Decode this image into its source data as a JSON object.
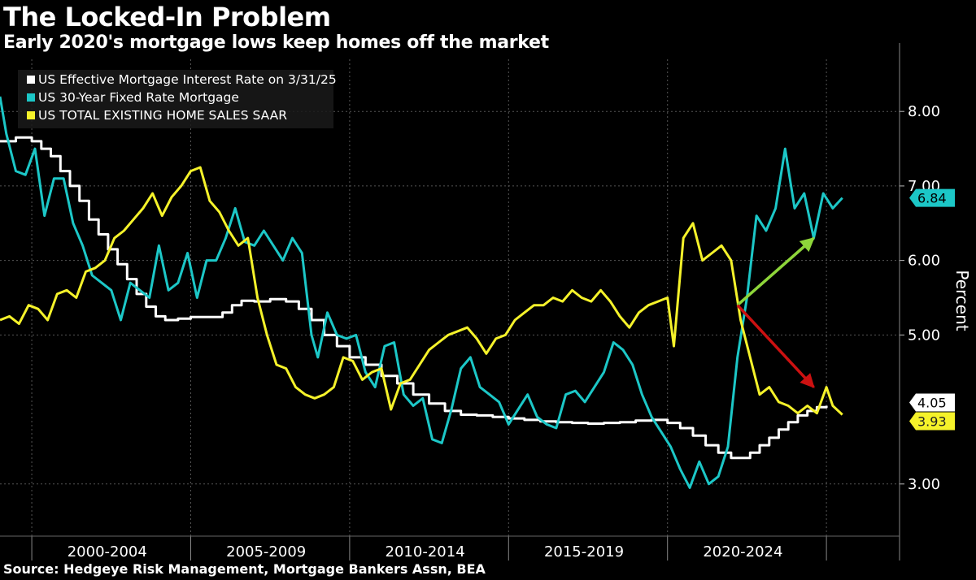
{
  "title": "The Locked-In Problem",
  "subtitle": "Early 2020's mortgage lows keep homes off the market",
  "source": "Source: Hedgeye Risk Management, Mortgage Bankers Assn, BEA",
  "chart_data": {
    "type": "line",
    "ylabel": "Percent",
    "ylim": [
      2.3,
      8.7
    ],
    "y_ticks": [
      3.0,
      5.0,
      6.0,
      7.0,
      8.0
    ],
    "y_tick_labels": [
      "3.00",
      "5.00",
      "6.00",
      "7.00",
      "8.00"
    ],
    "extra_tick_label": "4.05",
    "x_range": [
      1999.0,
      2027.3
    ],
    "categories": [
      "2000-2004",
      "2005-2009",
      "2010-2014",
      "2015-2019",
      "2020-2024"
    ],
    "grid": true,
    "legend_position": "top-left",
    "series": [
      {
        "name": "US Effective Mortgage Interest Rate on 3/31/25",
        "color": "#ffffff",
        "step": true,
        "last_label": "4.05",
        "points": [
          [
            1999.0,
            7.6
          ],
          [
            1999.5,
            7.65
          ],
          [
            2000.0,
            7.6
          ],
          [
            2000.3,
            7.5
          ],
          [
            2000.6,
            7.4
          ],
          [
            2000.9,
            7.2
          ],
          [
            2001.2,
            7.0
          ],
          [
            2001.5,
            6.8
          ],
          [
            2001.8,
            6.55
          ],
          [
            2002.1,
            6.35
          ],
          [
            2002.4,
            6.15
          ],
          [
            2002.7,
            5.95
          ],
          [
            2003.0,
            5.75
          ],
          [
            2003.3,
            5.55
          ],
          [
            2003.6,
            5.38
          ],
          [
            2003.9,
            5.25
          ],
          [
            2004.2,
            5.2
          ],
          [
            2004.6,
            5.22
          ],
          [
            2005.0,
            5.24
          ],
          [
            2005.5,
            5.24
          ],
          [
            2006.0,
            5.3
          ],
          [
            2006.3,
            5.4
          ],
          [
            2006.6,
            5.46
          ],
          [
            2007.0,
            5.45
          ],
          [
            2007.5,
            5.48
          ],
          [
            2008.0,
            5.45
          ],
          [
            2008.4,
            5.35
          ],
          [
            2008.8,
            5.2
          ],
          [
            2009.2,
            5.0
          ],
          [
            2009.6,
            4.85
          ],
          [
            2010.0,
            4.7
          ],
          [
            2010.5,
            4.6
          ],
          [
            2011.0,
            4.45
          ],
          [
            2011.5,
            4.35
          ],
          [
            2012.0,
            4.2
          ],
          [
            2012.5,
            4.08
          ],
          [
            2013.0,
            3.98
          ],
          [
            2013.5,
            3.93
          ],
          [
            2014.0,
            3.92
          ],
          [
            2014.5,
            3.9
          ],
          [
            2015.0,
            3.88
          ],
          [
            2015.5,
            3.86
          ],
          [
            2016.0,
            3.84
          ],
          [
            2016.5,
            3.83
          ],
          [
            2017.0,
            3.82
          ],
          [
            2017.5,
            3.81
          ],
          [
            2018.0,
            3.82
          ],
          [
            2018.5,
            3.83
          ],
          [
            2019.0,
            3.85
          ],
          [
            2019.5,
            3.86
          ],
          [
            2020.0,
            3.82
          ],
          [
            2020.4,
            3.75
          ],
          [
            2020.8,
            3.65
          ],
          [
            2021.2,
            3.52
          ],
          [
            2021.6,
            3.42
          ],
          [
            2022.0,
            3.35
          ],
          [
            2022.3,
            3.35
          ],
          [
            2022.6,
            3.42
          ],
          [
            2022.9,
            3.52
          ],
          [
            2023.2,
            3.62
          ],
          [
            2023.5,
            3.73
          ],
          [
            2023.8,
            3.83
          ],
          [
            2024.1,
            3.92
          ],
          [
            2024.4,
            3.98
          ],
          [
            2024.7,
            4.03
          ],
          [
            2025.0,
            4.05
          ]
        ]
      },
      {
        "name": "US 30-Year Fixed Rate Mortgage",
        "color": "#1cc7c7",
        "step": false,
        "last_label": "6.84",
        "points": [
          [
            1999.0,
            8.2
          ],
          [
            1999.2,
            7.7
          ],
          [
            1999.5,
            7.2
          ],
          [
            1999.8,
            7.15
          ],
          [
            2000.1,
            7.5
          ],
          [
            2000.4,
            6.6
          ],
          [
            2000.7,
            7.1
          ],
          [
            2001.0,
            7.1
          ],
          [
            2001.3,
            6.5
          ],
          [
            2001.6,
            6.2
          ],
          [
            2001.9,
            5.8
          ],
          [
            2002.2,
            5.7
          ],
          [
            2002.5,
            5.6
          ],
          [
            2002.8,
            5.2
          ],
          [
            2003.1,
            5.7
          ],
          [
            2003.4,
            5.6
          ],
          [
            2003.7,
            5.5
          ],
          [
            2004.0,
            6.2
          ],
          [
            2004.3,
            5.6
          ],
          [
            2004.6,
            5.7
          ],
          [
            2004.9,
            6.1
          ],
          [
            2005.2,
            5.5
          ],
          [
            2005.5,
            6.0
          ],
          [
            2005.8,
            6.0
          ],
          [
            2006.1,
            6.3
          ],
          [
            2006.4,
            6.7
          ],
          [
            2006.7,
            6.25
          ],
          [
            2007.0,
            6.2
          ],
          [
            2007.3,
            6.4
          ],
          [
            2007.6,
            6.2
          ],
          [
            2007.9,
            6.0
          ],
          [
            2008.2,
            6.3
          ],
          [
            2008.5,
            6.1
          ],
          [
            2008.8,
            5.0
          ],
          [
            2009.0,
            4.7
          ],
          [
            2009.3,
            5.3
          ],
          [
            2009.6,
            5.0
          ],
          [
            2009.9,
            4.95
          ],
          [
            2010.2,
            5.0
          ],
          [
            2010.5,
            4.5
          ],
          [
            2010.8,
            4.3
          ],
          [
            2011.1,
            4.85
          ],
          [
            2011.4,
            4.9
          ],
          [
            2011.7,
            4.2
          ],
          [
            2012.0,
            4.05
          ],
          [
            2012.3,
            4.15
          ],
          [
            2012.6,
            3.6
          ],
          [
            2012.9,
            3.55
          ],
          [
            2013.2,
            4.0
          ],
          [
            2013.5,
            4.55
          ],
          [
            2013.8,
            4.7
          ],
          [
            2014.1,
            4.3
          ],
          [
            2014.4,
            4.2
          ],
          [
            2014.7,
            4.1
          ],
          [
            2015.0,
            3.8
          ],
          [
            2015.3,
            4.0
          ],
          [
            2015.6,
            4.2
          ],
          [
            2015.9,
            3.9
          ],
          [
            2016.2,
            3.8
          ],
          [
            2016.5,
            3.75
          ],
          [
            2016.8,
            4.2
          ],
          [
            2017.1,
            4.25
          ],
          [
            2017.4,
            4.1
          ],
          [
            2017.7,
            4.3
          ],
          [
            2018.0,
            4.5
          ],
          [
            2018.3,
            4.9
          ],
          [
            2018.6,
            4.8
          ],
          [
            2018.9,
            4.6
          ],
          [
            2019.2,
            4.2
          ],
          [
            2019.5,
            3.9
          ],
          [
            2019.8,
            3.7
          ],
          [
            2020.1,
            3.5
          ],
          [
            2020.4,
            3.2
          ],
          [
            2020.7,
            2.95
          ],
          [
            2021.0,
            3.3
          ],
          [
            2021.3,
            3.0
          ],
          [
            2021.6,
            3.1
          ],
          [
            2021.9,
            3.5
          ],
          [
            2022.2,
            4.7
          ],
          [
            2022.5,
            5.5
          ],
          [
            2022.8,
            6.6
          ],
          [
            2023.1,
            6.4
          ],
          [
            2023.4,
            6.7
          ],
          [
            2023.7,
            7.5
          ],
          [
            2024.0,
            6.7
          ],
          [
            2024.3,
            6.9
          ],
          [
            2024.6,
            6.3
          ],
          [
            2024.9,
            6.9
          ],
          [
            2025.2,
            6.7
          ],
          [
            2025.5,
            6.84
          ]
        ]
      },
      {
        "name": "US TOTAL EXISTING HOME SALES SAAR",
        "color": "#f5f22a",
        "step": false,
        "last_label": "3.93",
        "points": [
          [
            1999.0,
            5.2
          ],
          [
            1999.3,
            5.25
          ],
          [
            1999.6,
            5.15
          ],
          [
            1999.9,
            5.4
          ],
          [
            2000.2,
            5.35
          ],
          [
            2000.5,
            5.2
          ],
          [
            2000.8,
            5.55
          ],
          [
            2001.1,
            5.6
          ],
          [
            2001.4,
            5.5
          ],
          [
            2001.7,
            5.85
          ],
          [
            2002.0,
            5.9
          ],
          [
            2002.3,
            6.0
          ],
          [
            2002.6,
            6.3
          ],
          [
            2002.9,
            6.4
          ],
          [
            2003.2,
            6.55
          ],
          [
            2003.5,
            6.7
          ],
          [
            2003.8,
            6.9
          ],
          [
            2004.1,
            6.6
          ],
          [
            2004.4,
            6.85
          ],
          [
            2004.7,
            7.0
          ],
          [
            2005.0,
            7.2
          ],
          [
            2005.3,
            7.25
          ],
          [
            2005.6,
            6.8
          ],
          [
            2005.9,
            6.65
          ],
          [
            2006.2,
            6.4
          ],
          [
            2006.5,
            6.2
          ],
          [
            2006.8,
            6.3
          ],
          [
            2007.1,
            5.5
          ],
          [
            2007.4,
            5.0
          ],
          [
            2007.7,
            4.6
          ],
          [
            2008.0,
            4.55
          ],
          [
            2008.3,
            4.3
          ],
          [
            2008.6,
            4.2
          ],
          [
            2008.9,
            4.15
          ],
          [
            2009.2,
            4.2
          ],
          [
            2009.5,
            4.3
          ],
          [
            2009.8,
            4.7
          ],
          [
            2010.1,
            4.65
          ],
          [
            2010.4,
            4.4
          ],
          [
            2010.7,
            4.5
          ],
          [
            2011.0,
            4.55
          ],
          [
            2011.3,
            4.0
          ],
          [
            2011.6,
            4.35
          ],
          [
            2011.9,
            4.4
          ],
          [
            2012.2,
            4.6
          ],
          [
            2012.5,
            4.8
          ],
          [
            2012.8,
            4.9
          ],
          [
            2013.1,
            5.0
          ],
          [
            2013.4,
            5.05
          ],
          [
            2013.7,
            5.1
          ],
          [
            2014.0,
            4.95
          ],
          [
            2014.3,
            4.75
          ],
          [
            2014.6,
            4.95
          ],
          [
            2014.9,
            5.0
          ],
          [
            2015.2,
            5.2
          ],
          [
            2015.5,
            5.3
          ],
          [
            2015.8,
            5.4
          ],
          [
            2016.1,
            5.4
          ],
          [
            2016.4,
            5.5
          ],
          [
            2016.7,
            5.45
          ],
          [
            2017.0,
            5.6
          ],
          [
            2017.3,
            5.5
          ],
          [
            2017.6,
            5.45
          ],
          [
            2017.9,
            5.6
          ],
          [
            2018.2,
            5.45
          ],
          [
            2018.5,
            5.25
          ],
          [
            2018.8,
            5.1
          ],
          [
            2019.1,
            5.3
          ],
          [
            2019.4,
            5.4
          ],
          [
            2019.7,
            5.45
          ],
          [
            2020.0,
            5.5
          ],
          [
            2020.2,
            4.85
          ],
          [
            2020.5,
            6.3
          ],
          [
            2020.8,
            6.5
          ],
          [
            2021.1,
            6.0
          ],
          [
            2021.4,
            6.1
          ],
          [
            2021.7,
            6.2
          ],
          [
            2022.0,
            6.0
          ],
          [
            2022.3,
            5.2
          ],
          [
            2022.6,
            4.7
          ],
          [
            2022.9,
            4.2
          ],
          [
            2023.2,
            4.3
          ],
          [
            2023.5,
            4.1
          ],
          [
            2023.8,
            4.05
          ],
          [
            2024.1,
            3.95
          ],
          [
            2024.4,
            4.05
          ],
          [
            2024.7,
            3.95
          ],
          [
            2025.0,
            4.3
          ],
          [
            2025.2,
            4.05
          ],
          [
            2025.5,
            3.93
          ]
        ]
      }
    ],
    "annotations": [
      {
        "type": "arrow",
        "color": "#8ed63a",
        "from": [
          2022.2,
          5.4
        ],
        "to": [
          2024.6,
          6.3
        ]
      },
      {
        "type": "arrow",
        "color": "#cc1111",
        "from": [
          2022.2,
          5.4
        ],
        "to": [
          2024.6,
          4.3
        ]
      }
    ]
  }
}
